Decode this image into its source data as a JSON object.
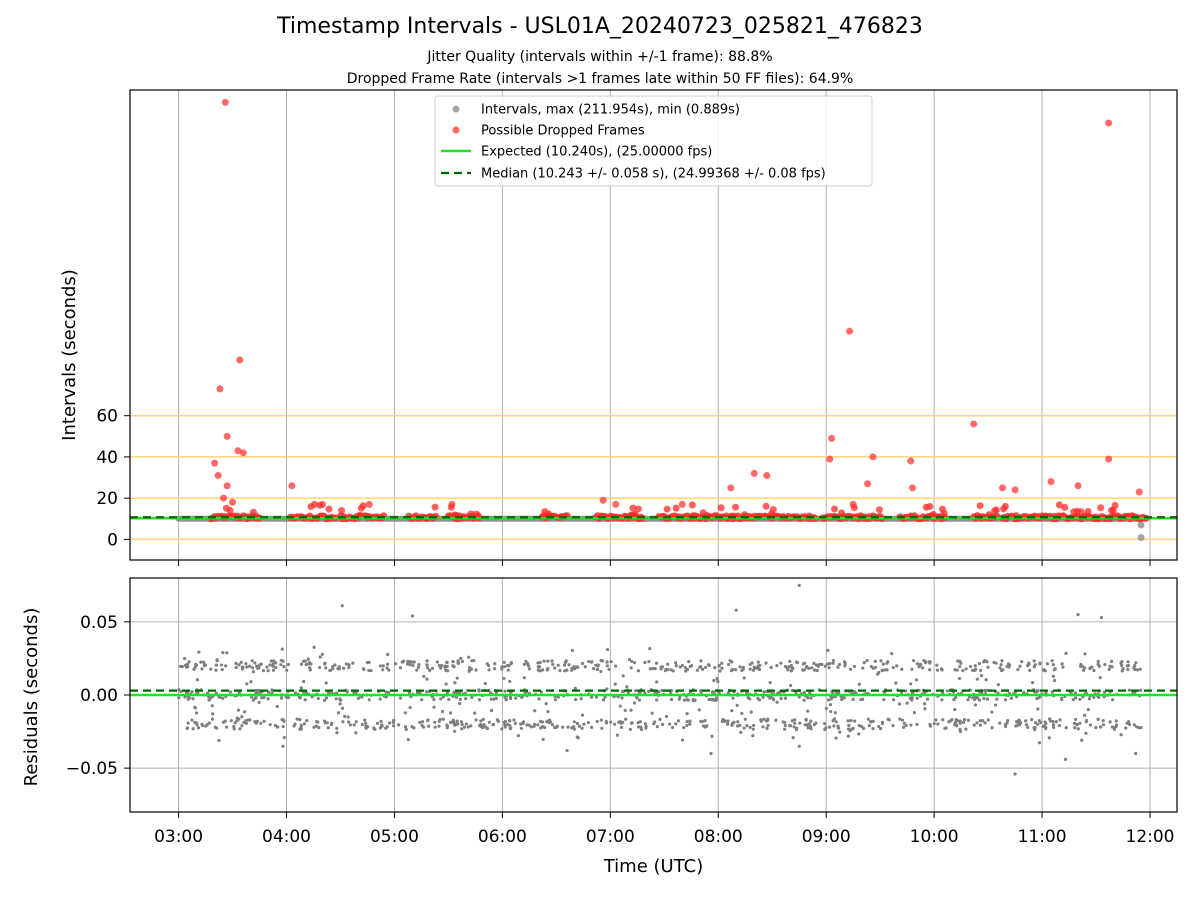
{
  "chart_data": [
    {
      "type": "scatter",
      "title": "Timestamp Intervals - USL01A_20240723_025821_476823",
      "subtitle_1": "Jitter Quality (intervals within +/-1 frame): 88.8%",
      "subtitle_2": "Dropped Frame Rate (intervals >1 frames late within 50 FF files): 64.9%",
      "ylabel": "Intervals (seconds)",
      "yticks": [
        "0",
        "20",
        "40",
        "60"
      ],
      "reference_lines": [
        0,
        20,
        40,
        60
      ],
      "grid": true,
      "legend_position": "top-center",
      "legend": [
        "Intervals, max (211.954s), min (0.889s)",
        "Possible Dropped Frames",
        "Expected (10.240s), (25.00000 fps)",
        "Median (10.243 +/- 0.058 s), (24.99368 +/- 0.08 fps)"
      ],
      "expected_interval": 10.24,
      "median_interval": 10.243,
      "dropped_frame_points": [
        {
          "t": "03:26",
          "v": 212
        },
        {
          "t": "11:37",
          "v": 202
        },
        {
          "t": "03:34",
          "v": 87
        },
        {
          "t": "03:23",
          "v": 73
        },
        {
          "t": "09:13",
          "v": 101
        },
        {
          "t": "03:27",
          "v": 50
        },
        {
          "t": "03:33",
          "v": 43
        },
        {
          "t": "03:36",
          "v": 42
        },
        {
          "t": "03:20",
          "v": 37
        },
        {
          "t": "03:22",
          "v": 31
        },
        {
          "t": "03:25",
          "v": 20
        },
        {
          "t": "03:27",
          "v": 26
        },
        {
          "t": "03:30",
          "v": 18
        },
        {
          "t": "04:03",
          "v": 26
        },
        {
          "t": "08:07",
          "v": 25
        },
        {
          "t": "08:20",
          "v": 32
        },
        {
          "t": "08:27",
          "v": 31
        },
        {
          "t": "09:02",
          "v": 39
        },
        {
          "t": "09:03",
          "v": 49
        },
        {
          "t": "09:15",
          "v": 17
        },
        {
          "t": "09:23",
          "v": 27
        },
        {
          "t": "09:26",
          "v": 40
        },
        {
          "t": "09:47",
          "v": 38
        },
        {
          "t": "09:48",
          "v": 25
        },
        {
          "t": "10:22",
          "v": 56
        },
        {
          "t": "10:38",
          "v": 25
        },
        {
          "t": "10:45",
          "v": 24
        },
        {
          "t": "11:05",
          "v": 28
        },
        {
          "t": "11:20",
          "v": 26
        },
        {
          "t": "11:37",
          "v": 39
        },
        {
          "t": "11:54",
          "v": 23
        },
        {
          "t": "06:56",
          "v": 19
        },
        {
          "t": "07:03",
          "v": 17
        },
        {
          "t": "07:40",
          "v": 17
        },
        {
          "t": "05:32",
          "v": 17
        },
        {
          "t": "04:46",
          "v": 17
        },
        {
          "t": "04:20",
          "v": 17
        }
      ],
      "dropped_frame_segments": [
        [
          "03:18",
          "03:45"
        ],
        [
          "04:02",
          "04:27"
        ],
        [
          "04:30",
          "04:54"
        ],
        [
          "05:08",
          "05:23"
        ],
        [
          "05:30",
          "05:47"
        ],
        [
          "06:22",
          "06:36"
        ],
        [
          "06:52",
          "07:18"
        ],
        [
          "07:27",
          "08:54"
        ],
        [
          "08:58",
          "09:31"
        ],
        [
          "09:41",
          "10:06"
        ],
        [
          "10:22",
          "10:35"
        ],
        [
          "10:38",
          "11:58"
        ]
      ],
      "normal_interval_points": [
        {
          "t": "11:55",
          "v": 7
        },
        {
          "t": "11:55",
          "v": 0.9
        }
      ]
    },
    {
      "type": "scatter",
      "xlabel": "Time (UTC)",
      "ylabel": "Residuals (seconds)",
      "xticks": [
        "03:00",
        "04:00",
        "05:00",
        "06:00",
        "07:00",
        "08:00",
        "09:00",
        "10:00",
        "11:00",
        "12:00"
      ],
      "yticks": [
        "0.05",
        "0.00",
        "−0.05"
      ],
      "ylim": [
        -0.08,
        0.08
      ],
      "grid": true,
      "residual_bands": [
        0.02,
        0.0,
        -0.02
      ],
      "residual_spread": 0.008,
      "expected_residual": 0.0,
      "median_residual": 0.003,
      "outliers": [
        {
          "t": "08:45",
          "v": 0.075
        },
        {
          "t": "04:31",
          "v": 0.061
        },
        {
          "t": "08:10",
          "v": 0.058
        },
        {
          "t": "10:45",
          "v": -0.054
        },
        {
          "t": "11:13",
          "v": -0.044
        },
        {
          "t": "03:58",
          "v": -0.035
        },
        {
          "t": "07:56",
          "v": -0.04
        },
        {
          "t": "11:52",
          "v": -0.04
        },
        {
          "t": "06:36",
          "v": -0.038
        },
        {
          "t": "08:45",
          "v": -0.035
        },
        {
          "t": "11:20",
          "v": 0.055
        },
        {
          "t": "11:33",
          "v": 0.053
        },
        {
          "t": "05:10",
          "v": 0.054
        }
      ]
    }
  ],
  "colors": {
    "interval_points": "#7f7f7f",
    "dropped_points": "#ff2a2a",
    "expected_line": "#1ee61e",
    "median_line": "#006400",
    "reference_lines": "#ffd27a",
    "grid": "#b0b0b0"
  }
}
